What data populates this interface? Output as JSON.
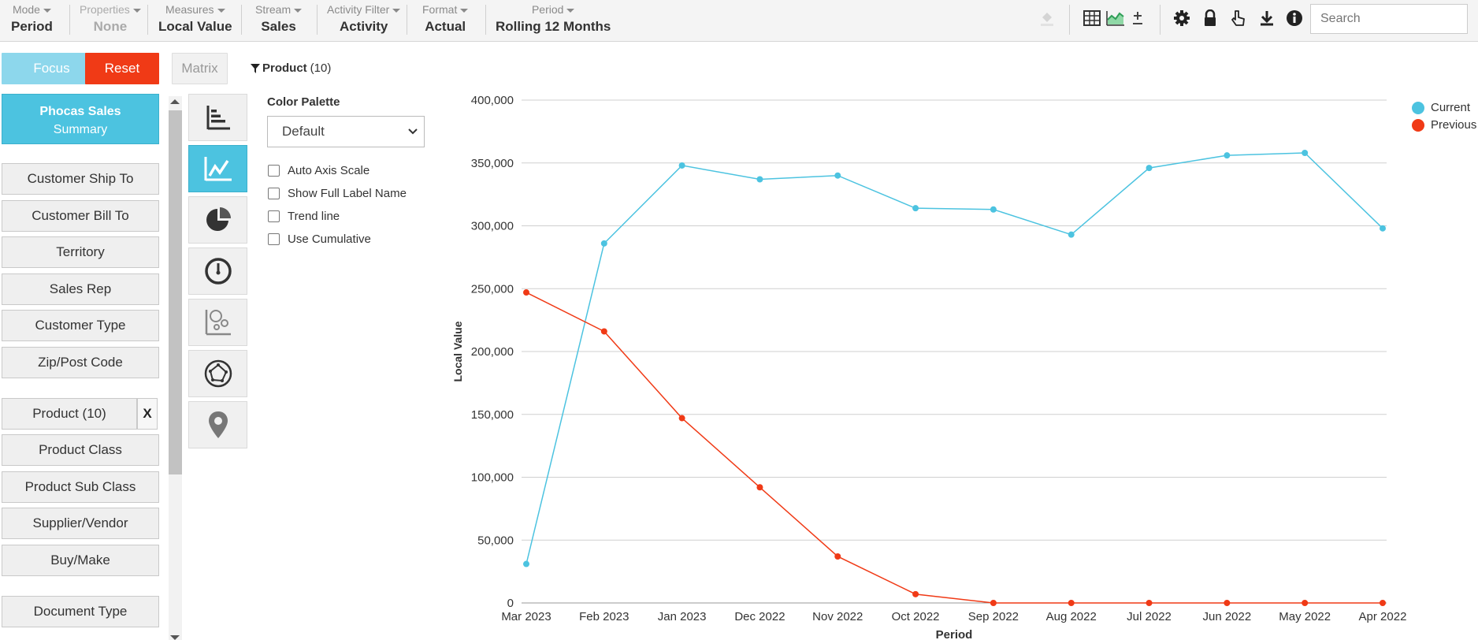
{
  "toolbar": {
    "items": [
      {
        "label": "Mode",
        "value": "Period"
      },
      {
        "label": "Properties",
        "value": "None"
      },
      {
        "label": "Measures",
        "value": "Local Value"
      },
      {
        "label": "Stream",
        "value": "Sales"
      },
      {
        "label": "Activity Filter",
        "value": "Activity"
      },
      {
        "label": "Format",
        "value": "Actual"
      },
      {
        "label": "Period",
        "value": "Rolling 12 Months"
      }
    ],
    "search_placeholder": "Search",
    "icons": [
      "paint-bucket-icon",
      "table-icon",
      "area-chart-icon",
      "plus-minus-icon",
      "gear-icon",
      "lock-icon",
      "hand-pointer-icon",
      "download-icon",
      "info-icon"
    ]
  },
  "actions": {
    "focus": "Focus",
    "reset": "Reset",
    "matrix": "Matrix"
  },
  "filter": {
    "name": "Product",
    "count": "(10)"
  },
  "summary": {
    "line1": "Phocas Sales",
    "line2": "Summary"
  },
  "dimensions": [
    "Customer Ship To",
    "Customer Bill To",
    "Territory",
    "Sales Rep",
    "Customer Type",
    "Zip/Post Code",
    "Product (10)",
    "Product Class",
    "Product Sub Class",
    "Supplier/Vendor",
    "Buy/Make",
    "Document Type"
  ],
  "remove_label": "X",
  "chart_types": [
    "bar-chart-icon",
    "line-chart-icon",
    "pie-chart-icon",
    "gauge-icon",
    "bubble-chart-icon",
    "radar-chart-icon",
    "map-pin-icon"
  ],
  "options": {
    "palette_title": "Color Palette",
    "palette_value": "Default",
    "checkboxes": [
      "Auto Axis Scale",
      "Show Full Label Name",
      "Trend line",
      "Use Cumulative"
    ]
  },
  "colors": {
    "current": "#4cc3e0",
    "previous": "#f03a16"
  },
  "chart_data": {
    "type": "line",
    "x": [
      "Mar 2023",
      "Feb 2023",
      "Jan 2023",
      "Dec 2022",
      "Nov 2022",
      "Oct 2022",
      "Sep 2022",
      "Aug 2022",
      "Jul 2022",
      "Jun 2022",
      "May 2022",
      "Apr 2022"
    ],
    "series": [
      {
        "name": "Current",
        "values": [
          31000,
          286000,
          348000,
          337000,
          340000,
          314000,
          313000,
          293000,
          346000,
          356000,
          358000,
          298000
        ]
      },
      {
        "name": "Previous",
        "values": [
          247000,
          216000,
          147000,
          92000,
          37000,
          7000,
          0,
          0,
          0,
          0,
          0,
          0
        ]
      }
    ],
    "xlabel": "Period",
    "ylabel": "Local Value",
    "ylim": [
      0,
      400000
    ],
    "yticks": [
      "0",
      "50,000",
      "100,000",
      "150,000",
      "200,000",
      "250,000",
      "300,000",
      "350,000",
      "400,000"
    ],
    "grid": true,
    "legend": "top-right"
  }
}
